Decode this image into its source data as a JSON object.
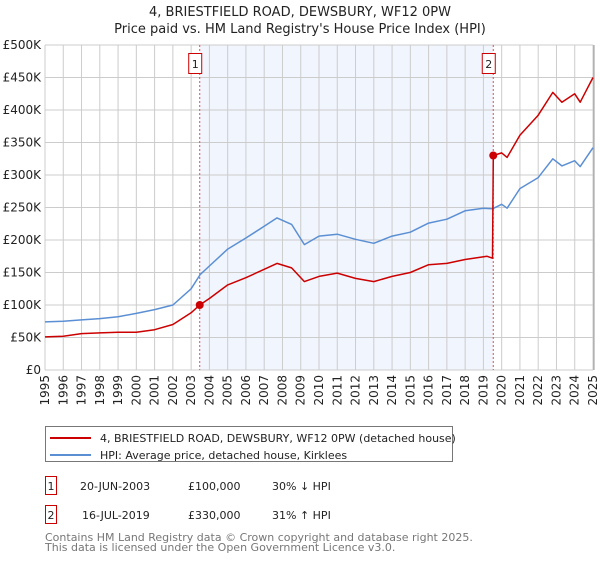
{
  "chart_data": {
    "type": "line",
    "title": "4, BRIESTFIELD ROAD, DEWSBURY, WF12 0PW",
    "subtitle": "Price paid vs. HM Land Registry's House Price Index (HPI)",
    "xlim": [
      1995,
      2025
    ],
    "ylim": [
      0,
      500000
    ],
    "x_ticks": [
      "1995",
      "1996",
      "1997",
      "1998",
      "1999",
      "2000",
      "2001",
      "2002",
      "2003",
      "2004",
      "2005",
      "2006",
      "2007",
      "2008",
      "2009",
      "2010",
      "2011",
      "2012",
      "2013",
      "2014",
      "2015",
      "2016",
      "2017",
      "2018",
      "2019",
      "2020",
      "2021",
      "2022",
      "2023",
      "2024",
      "2025"
    ],
    "y_ticks": [
      {
        "value": 0,
        "label": "£0"
      },
      {
        "value": 50000,
        "label": "£50K"
      },
      {
        "value": 100000,
        "label": "£100K"
      },
      {
        "value": 150000,
        "label": "£150K"
      },
      {
        "value": 200000,
        "label": "£200K"
      },
      {
        "value": 250000,
        "label": "£250K"
      },
      {
        "value": 300000,
        "label": "£300K"
      },
      {
        "value": 350000,
        "label": "£350K"
      },
      {
        "value": 400000,
        "label": "£400K"
      },
      {
        "value": 450000,
        "label": "£450K"
      },
      {
        "value": 500000,
        "label": "£500K"
      }
    ],
    "grid": true,
    "shaded_range": [
      2003.47,
      2019.54
    ],
    "series": [
      {
        "name": "4, BRIESTFIELD ROAD, DEWSBURY, WF12 0PW (detached house)",
        "color": "#cc0000",
        "x": [
          1995,
          1996,
          1997,
          1998,
          1999,
          2000,
          2001,
          2002,
          2003,
          2003.47,
          2004,
          2005,
          2006,
          2007,
          2007.7,
          2008.5,
          2009.2,
          2010,
          2011,
          2012,
          2013,
          2014,
          2015,
          2016,
          2017,
          2018,
          2019.2,
          2019.5,
          2019.54,
          2020,
          2020.3,
          2021,
          2022,
          2022.8,
          2023.3,
          2024,
          2024.3,
          2025
        ],
        "y": [
          51000,
          52000,
          56000,
          57000,
          58000,
          58000,
          62000,
          70000,
          88000,
          100000,
          110000,
          131000,
          142000,
          155000,
          164000,
          157000,
          136000,
          144000,
          149000,
          141000,
          136000,
          144000,
          150000,
          162000,
          164000,
          170000,
          175000,
          172000,
          330000,
          334000,
          327000,
          361000,
          392000,
          427000,
          412000,
          425000,
          412000,
          450000
        ]
      },
      {
        "name": "HPI: Average price, detached house, Kirklees",
        "color": "#5b8fd4",
        "x": [
          1995,
          1996,
          1997,
          1998,
          1999,
          2000,
          2001,
          2002,
          2003,
          2003.5,
          2004,
          2005,
          2006,
          2007,
          2007.7,
          2008.5,
          2009.2,
          2010,
          2011,
          2012,
          2013,
          2014,
          2015,
          2016,
          2017,
          2018,
          2019,
          2019.5,
          2020,
          2020.3,
          2021,
          2022,
          2022.8,
          2023.3,
          2024,
          2024.3,
          2025
        ],
        "y": [
          74000,
          75000,
          77000,
          79000,
          82000,
          87000,
          93000,
          100000,
          125000,
          147000,
          160000,
          186000,
          203000,
          221000,
          234000,
          224000,
          193000,
          206000,
          209000,
          201000,
          195000,
          206000,
          212000,
          226000,
          232000,
          245000,
          249000,
          248000,
          255000,
          249000,
          279000,
          296000,
          325000,
          314000,
          322000,
          313000,
          342000
        ]
      }
    ],
    "sales": [
      {
        "label": "1",
        "x": 2003.47,
        "value": 100000,
        "date": "20-JUN-2003",
        "price": "£100,000",
        "hpi": "30% ↓ HPI"
      },
      {
        "label": "2",
        "x": 2019.54,
        "value": 330000,
        "date": "16-JUL-2019",
        "price": "£330,000",
        "hpi": "31% ↑ HPI"
      }
    ],
    "legend_placement": "below"
  },
  "footer": {
    "line1": "Contains HM Land Registry data © Crown copyright and database right 2025.",
    "line2": "This data is licensed under the Open Government Licence v3.0."
  }
}
